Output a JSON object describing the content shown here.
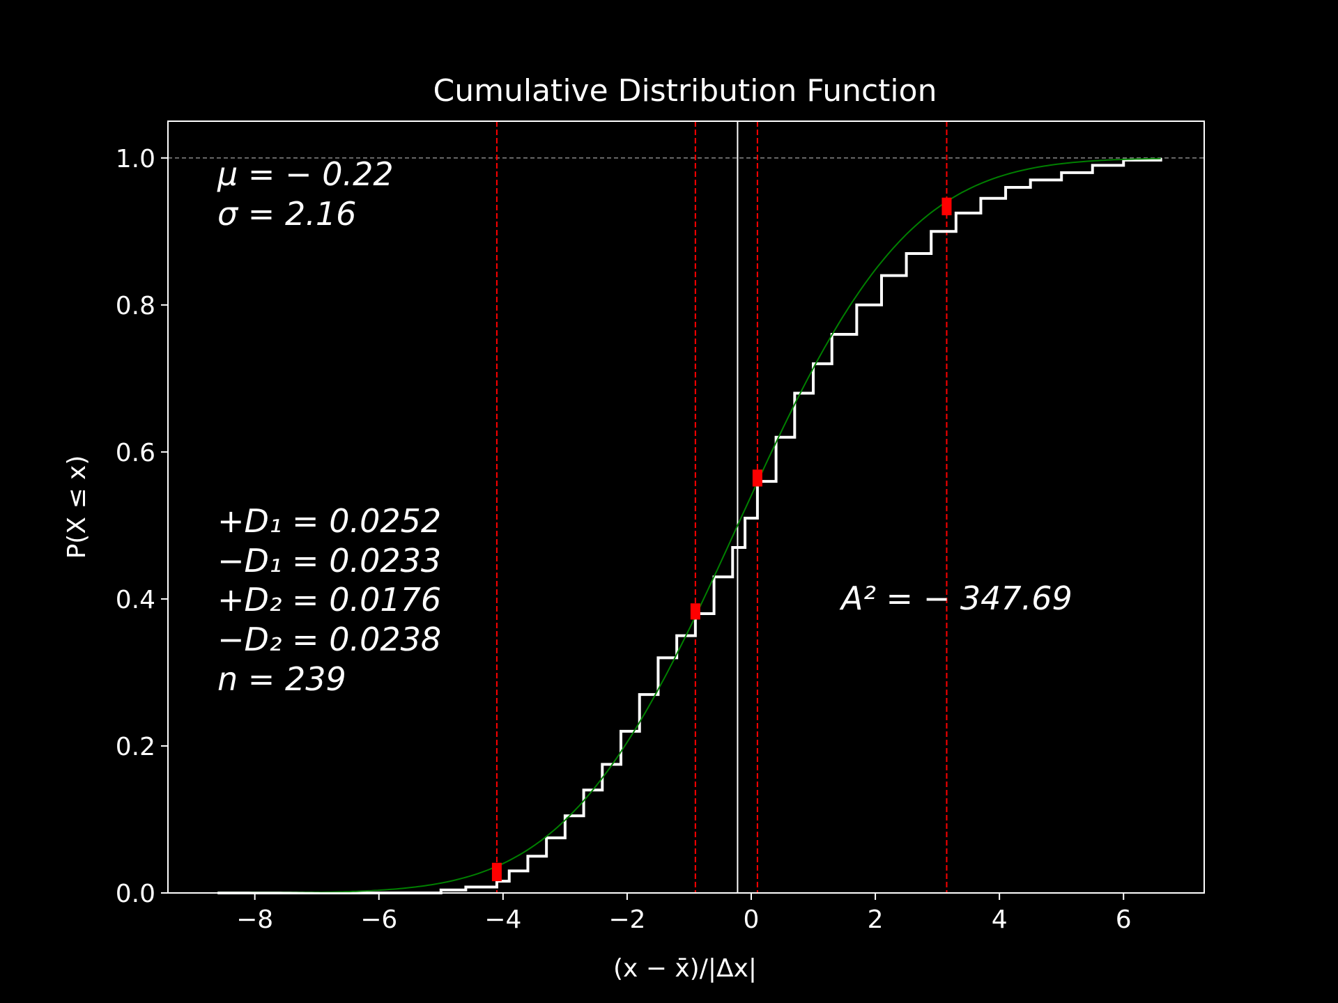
{
  "chart_data": {
    "type": "line",
    "title": "Cumulative Distribution Function",
    "xlabel": "(x − x̄)/|Δx|",
    "ylabel": "P(X ≤ x)",
    "xlim": [
      -9.4,
      7.3
    ],
    "ylim": [
      0.0,
      1.05
    ],
    "x_ticks": [
      -8,
      -6,
      -4,
      -2,
      0,
      2,
      4,
      6
    ],
    "x_tick_labels": [
      "−8",
      "−6",
      "−4",
      "−2",
      "0",
      "2",
      "4",
      "6"
    ],
    "y_ticks": [
      0.0,
      0.2,
      0.4,
      0.6,
      0.8,
      1.0
    ],
    "y_tick_labels": [
      "0.0",
      "0.2",
      "0.4",
      "0.6",
      "0.8",
      "1.0"
    ],
    "grid": false,
    "reference_line_y": 1.0,
    "mean_line_x": -0.22,
    "dashed_vlines_x": [
      -4.1,
      -0.9,
      0.1,
      3.15
    ],
    "ks_markers": [
      {
        "x": -4.1,
        "y_low": 0.016,
        "y_high": 0.041
      },
      {
        "x": -0.9,
        "y_low": 0.372,
        "y_high": 0.394
      },
      {
        "x": 0.1,
        "y_low": 0.553,
        "y_high": 0.576
      },
      {
        "x": 3.15,
        "y_low": 0.922,
        "y_high": 0.946
      }
    ],
    "series": [
      {
        "type": "step",
        "color": "#ffffff",
        "x": [
          -8.6,
          -5.6,
          -5.0,
          -4.6,
          -4.1,
          -3.9,
          -3.6,
          -3.3,
          -3.0,
          -2.7,
          -2.4,
          -2.1,
          -1.8,
          -1.5,
          -1.2,
          -0.9,
          -0.6,
          -0.3,
          -0.1,
          0.1,
          0.4,
          0.7,
          1.0,
          1.3,
          1.7,
          2.1,
          2.5,
          2.9,
          3.3,
          3.7,
          4.1,
          4.5,
          5.0,
          5.5,
          6.0,
          6.6
        ],
        "y": [
          0.0,
          0.0,
          0.004,
          0.008,
          0.016,
          0.03,
          0.05,
          0.075,
          0.105,
          0.14,
          0.175,
          0.22,
          0.27,
          0.32,
          0.35,
          0.38,
          0.43,
          0.47,
          0.51,
          0.56,
          0.62,
          0.68,
          0.72,
          0.76,
          0.8,
          0.84,
          0.87,
          0.9,
          0.925,
          0.945,
          0.96,
          0.97,
          0.98,
          0.99,
          0.997,
          1.0
        ]
      },
      {
        "type": "normal_cdf",
        "color": "#008000",
        "mu": -0.22,
        "sigma": 2.16,
        "x_range": [
          -8.6,
          6.6
        ]
      }
    ],
    "annotations": {
      "stats_top": [
        "μ = − 0.22",
        "σ = 2.16"
      ],
      "stats_d": [
        "+D₁ = 0.0252",
        "−D₁ = 0.0233",
        "+D₂ = 0.0176",
        "−D₂ = 0.0238",
        "n = 239"
      ],
      "a2": "A² = − 347.69"
    }
  },
  "colors": {
    "background": "#000000",
    "axes": "#ffffff",
    "cdf_fit": "#008000",
    "empirical": "#ffffff",
    "markers": "#ff0000",
    "reference": "#888888"
  }
}
